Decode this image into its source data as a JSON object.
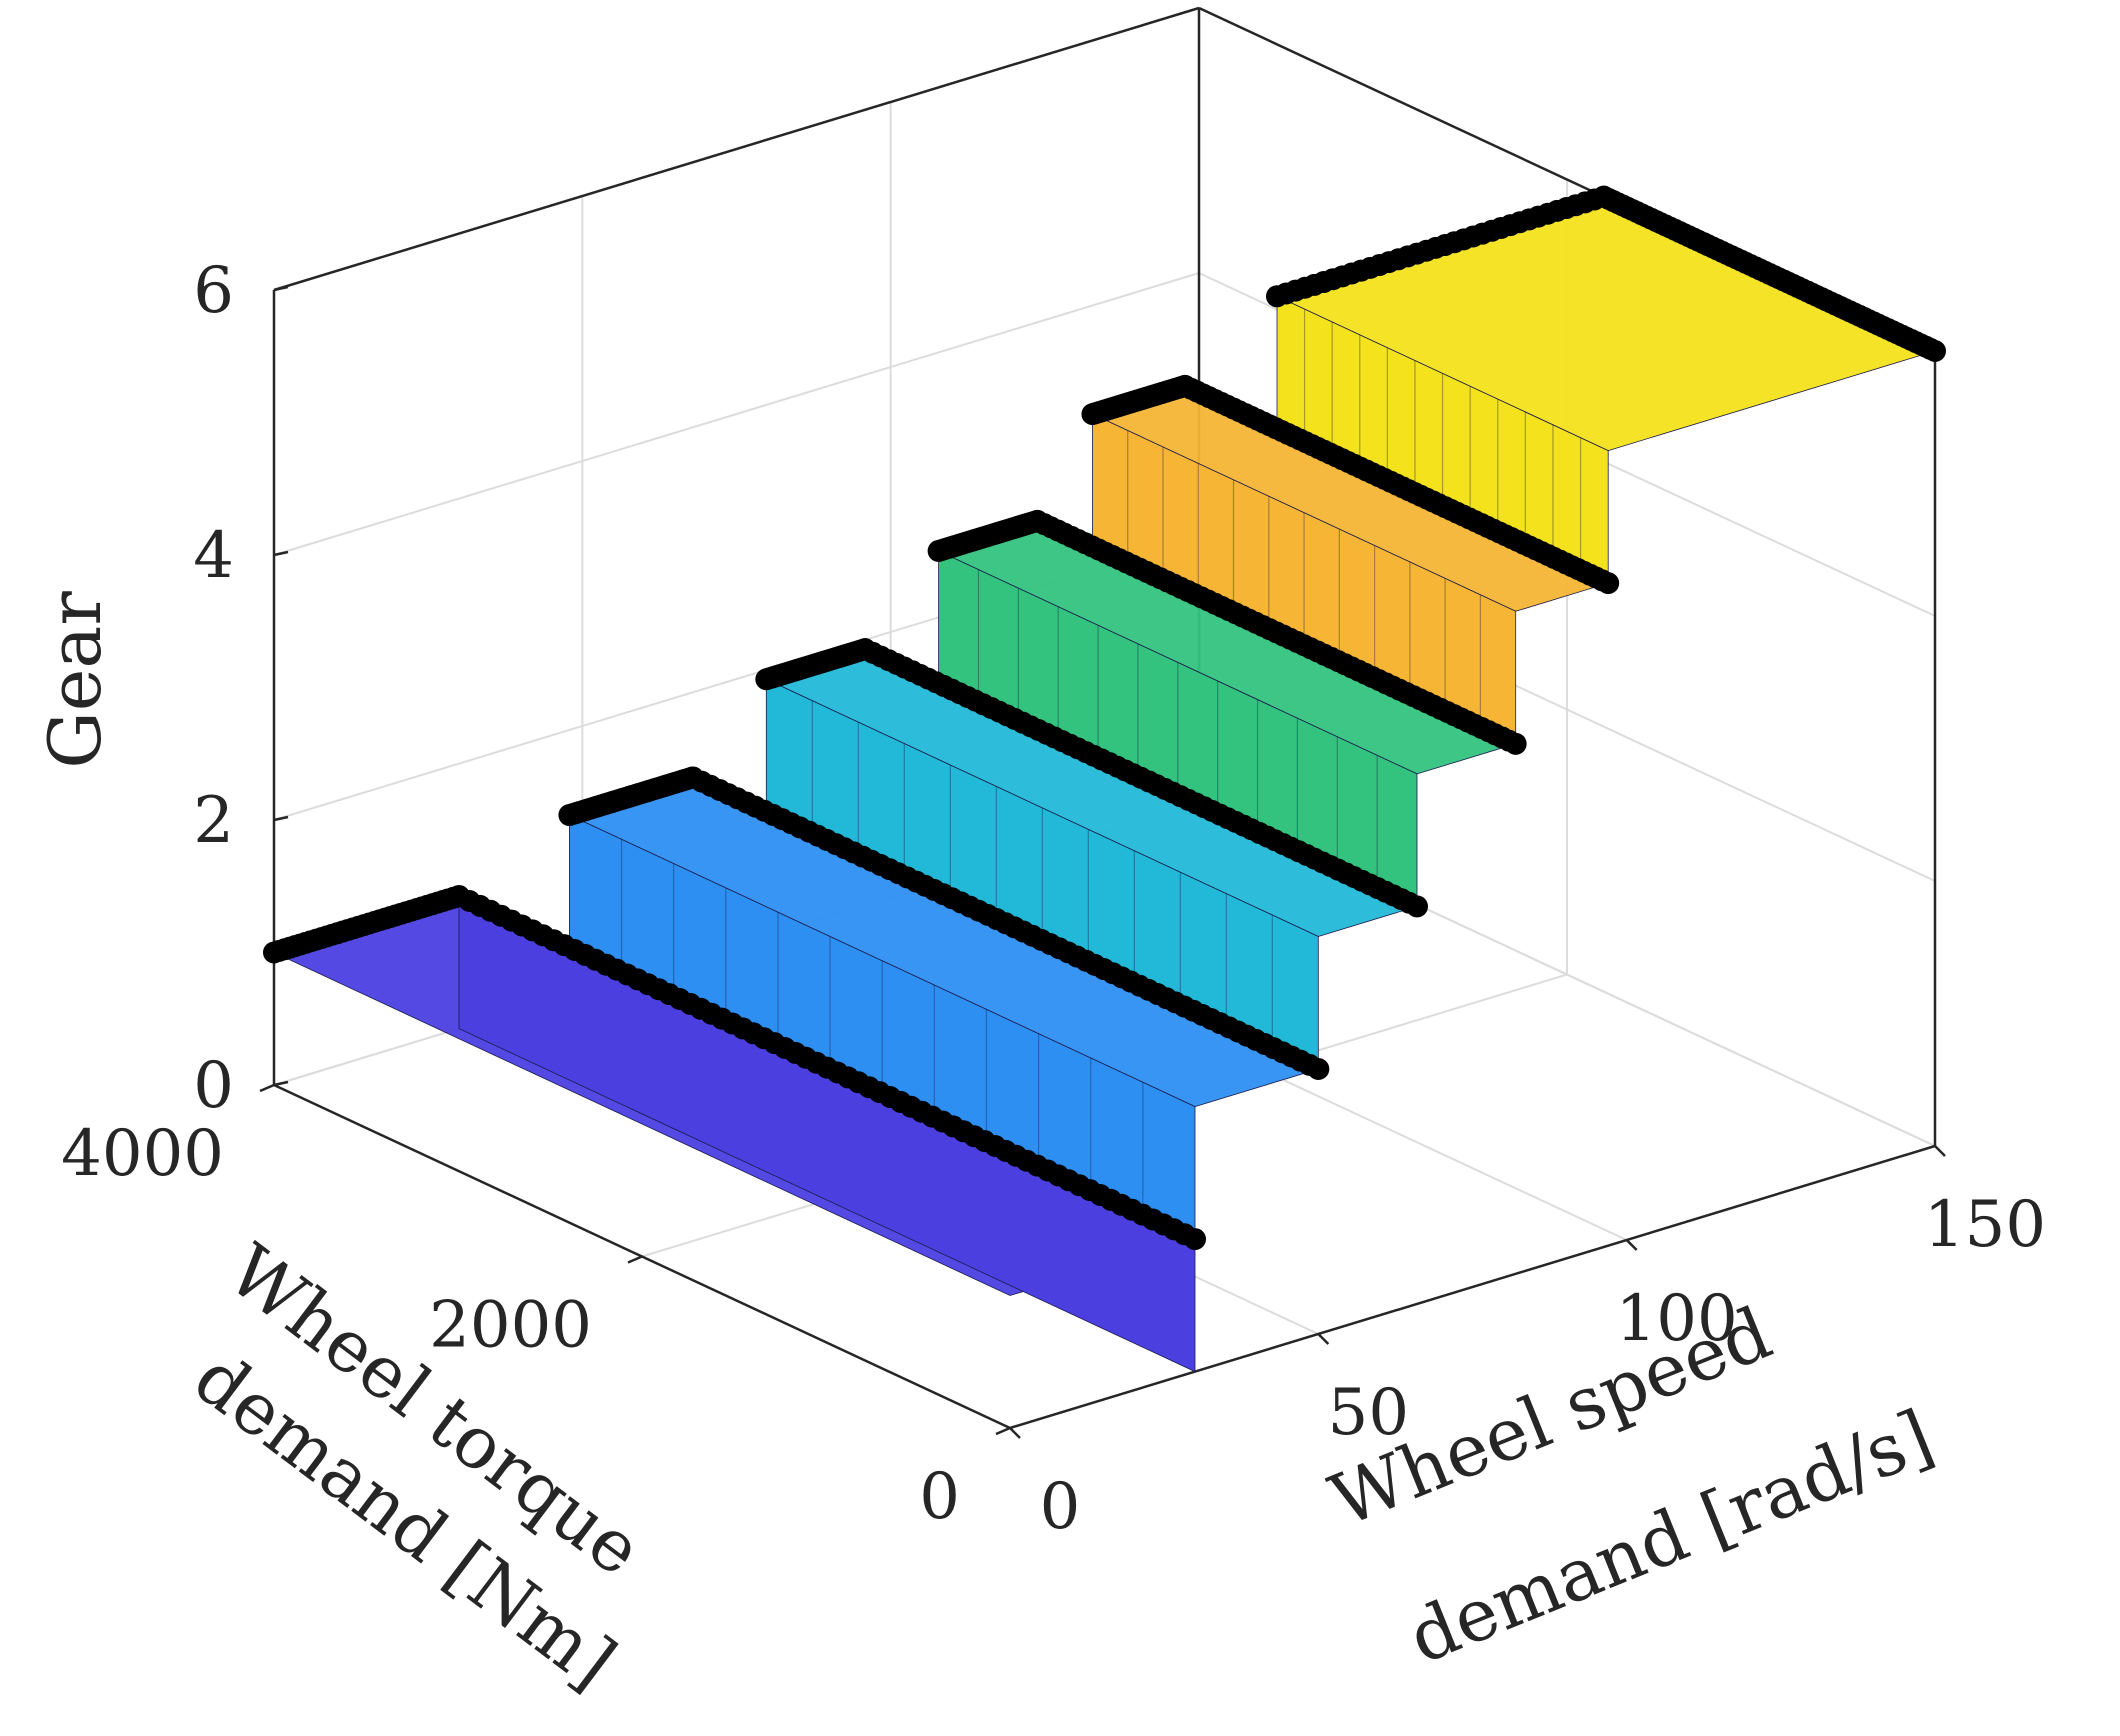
{
  "chart_data": {
    "type": "surface",
    "title": "",
    "xlabel": [
      "Wheel speed",
      "demand [rad/s]"
    ],
    "ylabel": [
      "Wheel torque",
      "demand [Nm]"
    ],
    "zlabel": "Gear",
    "xlim": [
      0,
      150
    ],
    "ylim": [
      0,
      4000
    ],
    "zlim": [
      0,
      6
    ],
    "xticks": [
      "0",
      "50",
      "100",
      "150"
    ],
    "yticks": [
      "0",
      "2000",
      "4000"
    ],
    "zticks": [
      "0",
      "2",
      "4",
      "6"
    ],
    "grid": true,
    "legend": "none",
    "colormap": [
      "#3e26a8",
      "#4a4bf0",
      "#2f7df9",
      "#1ba8e0",
      "#1cc3a8",
      "#3fca73",
      "#f5b936",
      "#f9e61e"
    ],
    "gears": [
      {
        "gear": 1,
        "speed_range": [
          0,
          30
        ],
        "torque_range": [
          0,
          4000
        ],
        "color": "#4b3fe0"
      },
      {
        "gear": 2,
        "speed_range": [
          30,
          50
        ],
        "torque_range": [
          0,
          3400
        ],
        "color": "#2e8ff2"
      },
      {
        "gear": 3,
        "speed_range": [
          50,
          66
        ],
        "torque_range": [
          0,
          3000
        ],
        "color": "#22b8d8"
      },
      {
        "gear": 4,
        "speed_range": [
          66,
          82
        ],
        "torque_range": [
          0,
          2600
        ],
        "color": "#33c37e"
      },
      {
        "gear": 5,
        "speed_range": [
          82,
          97
        ],
        "torque_range": [
          0,
          2300
        ],
        "color": "#f6b535"
      },
      {
        "gear": 6,
        "speed_range": [
          97,
          150
        ],
        "torque_range": [
          0,
          1800
        ],
        "color": "#f4e21c"
      }
    ],
    "observed_points": {
      "marker": "filled circle",
      "color": "#000000"
    }
  }
}
